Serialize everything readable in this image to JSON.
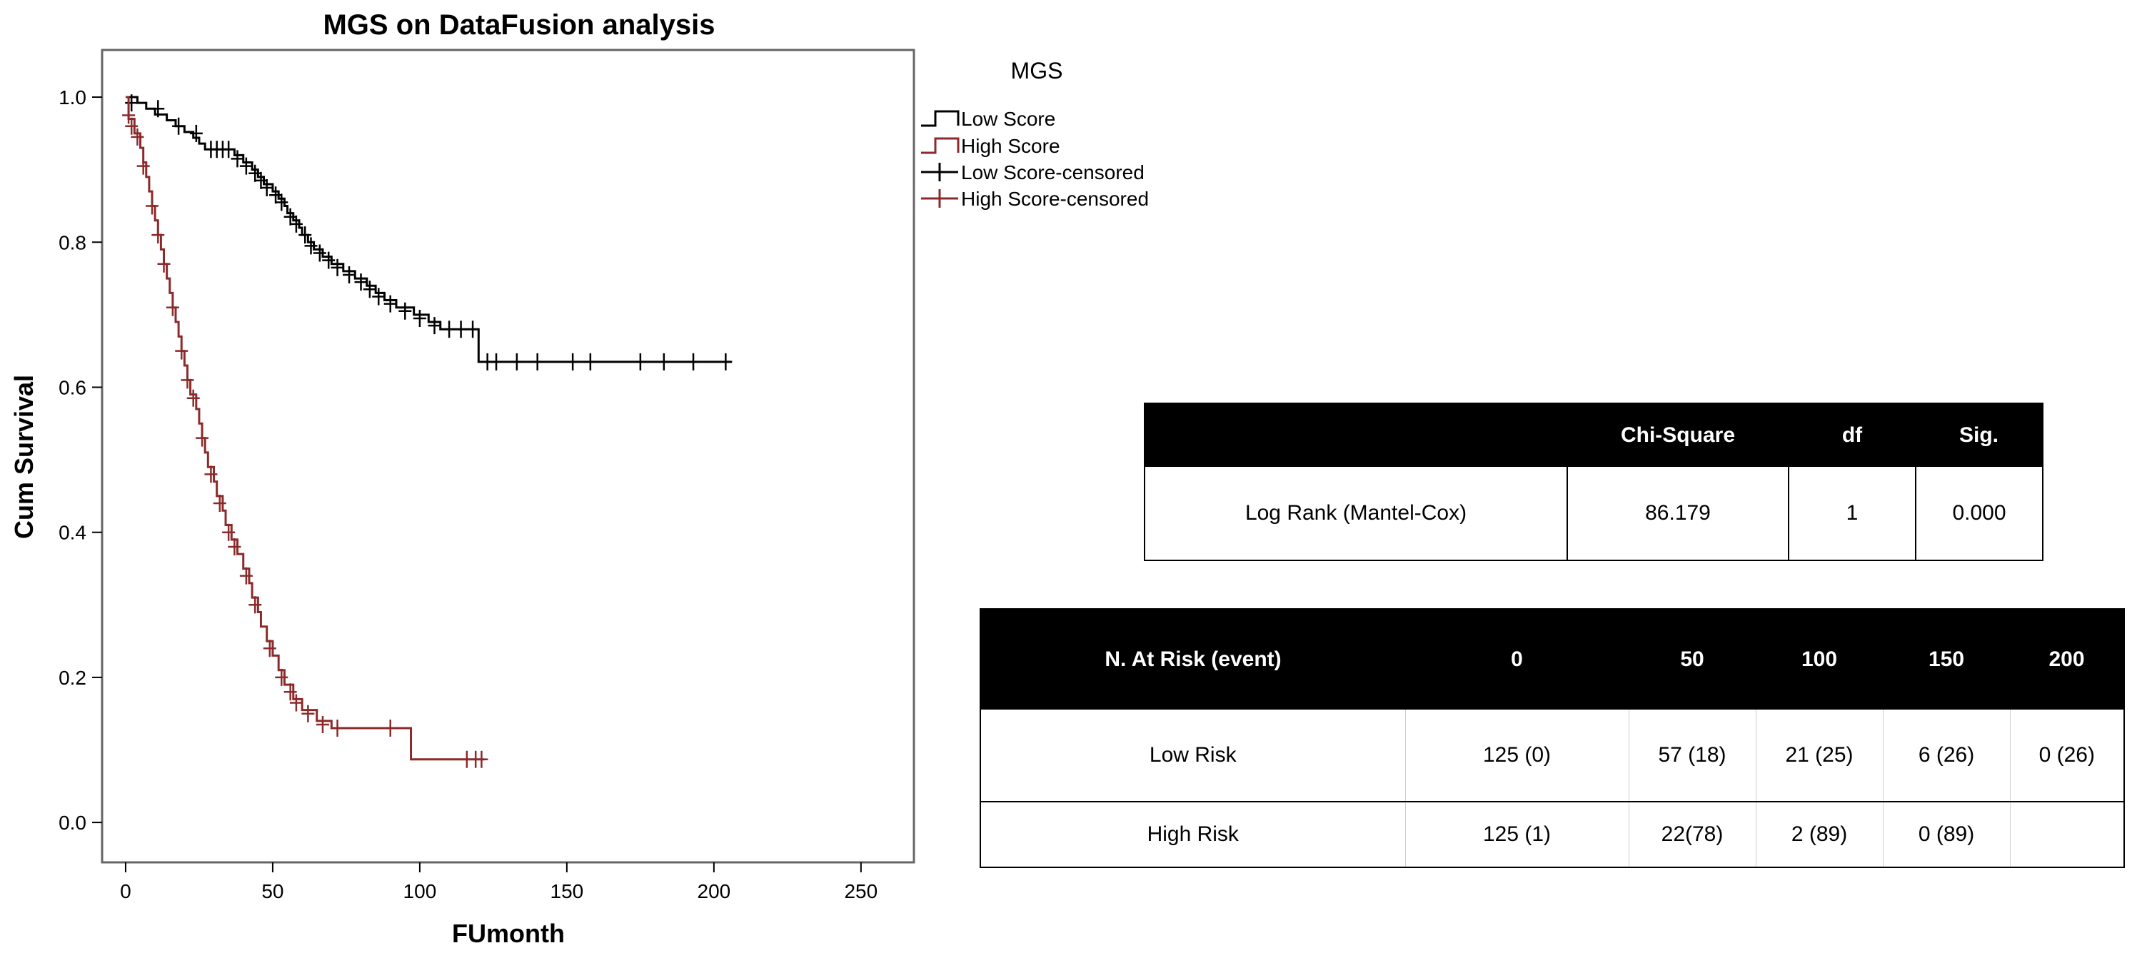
{
  "chart_data": {
    "type": "line",
    "title": "MGS on DataFusion analysis",
    "xlabel": "FUmonth",
    "ylabel": "Cum Survival",
    "xlim": [
      -8,
      268
    ],
    "ylim": [
      -0.055,
      1.065
    ],
    "xticks": [
      0,
      50,
      100,
      150,
      200,
      250
    ],
    "yticks": [
      0.0,
      0.2,
      0.4,
      0.6,
      0.8,
      1.0
    ],
    "ytick_labels": [
      "0.0",
      "0.2",
      "0.4",
      "0.6",
      "0.8",
      "1.0"
    ],
    "legend": {
      "title": "MGS",
      "placement": "outside-right-top",
      "entries": [
        "Low Score",
        "High Score",
        "Low Score-censored",
        "High Score-censored"
      ]
    },
    "series": [
      {
        "name": "Low Score",
        "color": "#000000",
        "steps": [
          [
            0,
            1.0
          ],
          [
            4,
            0.992
          ],
          [
            7,
            0.984
          ],
          [
            10,
            0.976
          ],
          [
            14,
            0.968
          ],
          [
            17,
            0.96
          ],
          [
            20,
            0.952
          ],
          [
            23,
            0.944
          ],
          [
            25,
            0.936
          ],
          [
            27,
            0.928
          ],
          [
            37,
            0.92
          ],
          [
            40,
            0.91
          ],
          [
            43,
            0.9
          ],
          [
            45,
            0.89
          ],
          [
            47,
            0.88
          ],
          [
            50,
            0.87
          ],
          [
            52,
            0.86
          ],
          [
            54,
            0.85
          ],
          [
            55,
            0.84
          ],
          [
            57,
            0.83
          ],
          [
            59,
            0.82
          ],
          [
            60,
            0.81
          ],
          [
            62,
            0.8
          ],
          [
            64,
            0.79
          ],
          [
            67,
            0.78
          ],
          [
            70,
            0.77
          ],
          [
            74,
            0.76
          ],
          [
            78,
            0.75
          ],
          [
            82,
            0.74
          ],
          [
            85,
            0.73
          ],
          [
            88,
            0.72
          ],
          [
            92,
            0.71
          ],
          [
            98,
            0.7
          ],
          [
            103,
            0.69
          ],
          [
            107,
            0.68
          ],
          [
            120,
            0.635
          ],
          [
            206,
            0.635
          ]
        ],
        "censored": [
          [
            2,
            0.992
          ],
          [
            11,
            0.984
          ],
          [
            18,
            0.96
          ],
          [
            24,
            0.95
          ],
          [
            29,
            0.928
          ],
          [
            31,
            0.928
          ],
          [
            33,
            0.928
          ],
          [
            35,
            0.928
          ],
          [
            38,
            0.915
          ],
          [
            41,
            0.905
          ],
          [
            44,
            0.895
          ],
          [
            46,
            0.885
          ],
          [
            48,
            0.875
          ],
          [
            51,
            0.865
          ],
          [
            53,
            0.855
          ],
          [
            56,
            0.835
          ],
          [
            58,
            0.825
          ],
          [
            61,
            0.81
          ],
          [
            63,
            0.795
          ],
          [
            66,
            0.785
          ],
          [
            69,
            0.775
          ],
          [
            72,
            0.765
          ],
          [
            76,
            0.755
          ],
          [
            80,
            0.745
          ],
          [
            83,
            0.735
          ],
          [
            86,
            0.725
          ],
          [
            90,
            0.715
          ],
          [
            95,
            0.705
          ],
          [
            100,
            0.695
          ],
          [
            105,
            0.685
          ],
          [
            110,
            0.68
          ],
          [
            114,
            0.68
          ],
          [
            118,
            0.68
          ],
          [
            123,
            0.635
          ],
          [
            126,
            0.635
          ],
          [
            133,
            0.635
          ],
          [
            140,
            0.635
          ],
          [
            152,
            0.635
          ],
          [
            158,
            0.635
          ],
          [
            175,
            0.635
          ],
          [
            183,
            0.635
          ],
          [
            193,
            0.635
          ],
          [
            204,
            0.635
          ]
        ]
      },
      {
        "name": "High Score",
        "color": "#8b2a2a",
        "steps": [
          [
            0,
            1.0
          ],
          [
            1,
            0.97
          ],
          [
            3,
            0.95
          ],
          [
            5,
            0.93
          ],
          [
            6,
            0.91
          ],
          [
            7,
            0.89
          ],
          [
            8,
            0.87
          ],
          [
            9,
            0.85
          ],
          [
            10,
            0.83
          ],
          [
            11,
            0.81
          ],
          [
            12,
            0.79
          ],
          [
            13,
            0.77
          ],
          [
            14,
            0.75
          ],
          [
            15,
            0.73
          ],
          [
            16,
            0.71
          ],
          [
            17,
            0.69
          ],
          [
            18,
            0.67
          ],
          [
            19,
            0.65
          ],
          [
            20,
            0.63
          ],
          [
            21,
            0.61
          ],
          [
            22,
            0.59
          ],
          [
            24,
            0.57
          ],
          [
            25,
            0.55
          ],
          [
            26,
            0.53
          ],
          [
            27,
            0.51
          ],
          [
            28,
            0.49
          ],
          [
            30,
            0.47
          ],
          [
            31,
            0.45
          ],
          [
            33,
            0.43
          ],
          [
            34,
            0.41
          ],
          [
            36,
            0.39
          ],
          [
            38,
            0.37
          ],
          [
            40,
            0.35
          ],
          [
            42,
            0.33
          ],
          [
            43,
            0.31
          ],
          [
            45,
            0.29
          ],
          [
            46,
            0.27
          ],
          [
            48,
            0.25
          ],
          [
            50,
            0.23
          ],
          [
            52,
            0.21
          ],
          [
            54,
            0.19
          ],
          [
            57,
            0.17
          ],
          [
            60,
            0.155
          ],
          [
            65,
            0.14
          ],
          [
            70,
            0.13
          ],
          [
            97,
            0.087
          ],
          [
            122,
            0.087
          ]
        ],
        "censored": [
          [
            1,
            0.975
          ],
          [
            2,
            0.96
          ],
          [
            4,
            0.945
          ],
          [
            6,
            0.905
          ],
          [
            9,
            0.85
          ],
          [
            11,
            0.81
          ],
          [
            13,
            0.77
          ],
          [
            16,
            0.71
          ],
          [
            19,
            0.65
          ],
          [
            21,
            0.61
          ],
          [
            23,
            0.585
          ],
          [
            26,
            0.53
          ],
          [
            29,
            0.48
          ],
          [
            32,
            0.44
          ],
          [
            35,
            0.4
          ],
          [
            37,
            0.38
          ],
          [
            41,
            0.34
          ],
          [
            44,
            0.3
          ],
          [
            49,
            0.24
          ],
          [
            53,
            0.2
          ],
          [
            56,
            0.18
          ],
          [
            58,
            0.165
          ],
          [
            62,
            0.15
          ],
          [
            67,
            0.135
          ],
          [
            72,
            0.13
          ],
          [
            90,
            0.13
          ],
          [
            116,
            0.087
          ],
          [
            119,
            0.087
          ],
          [
            121,
            0.087
          ]
        ]
      }
    ]
  },
  "logrank_table": {
    "headers": [
      "",
      "Chi-Square",
      "df",
      "Sig."
    ],
    "rows": [
      [
        "Log Rank (Mantel-Cox)",
        "86.179",
        "1",
        "0.000"
      ]
    ]
  },
  "risk_table": {
    "headers": [
      "N. At Risk (event)",
      "0",
      "50",
      "100",
      "150",
      "200"
    ],
    "rows": [
      [
        "Low Risk",
        "125 (0)",
        "57 (18)",
        "21 (25)",
        "6 (26)",
        "0 (26)"
      ],
      [
        "High Risk",
        "125 (1)",
        "22(78)",
        "2 (89)",
        "0 (89)",
        ""
      ]
    ]
  }
}
